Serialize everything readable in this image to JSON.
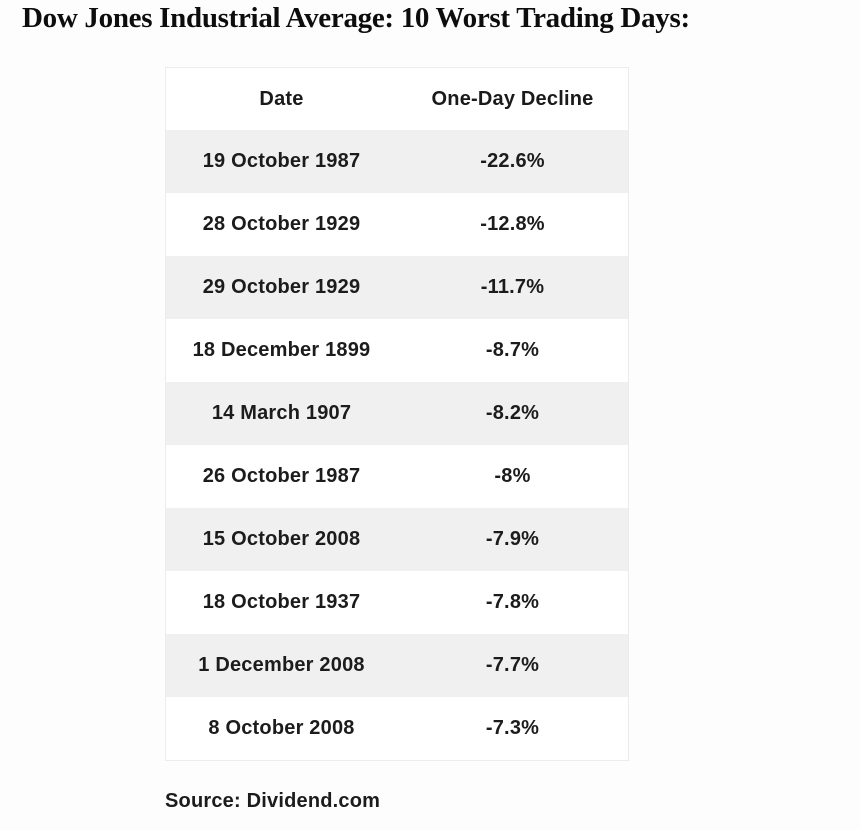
{
  "chart_data": {
    "type": "table",
    "title": "Dow Jones Industrial Average: 10 Worst Trading Days:",
    "columns": [
      "Date",
      "One-Day Decline"
    ],
    "rows": [
      [
        "19 October 1987",
        "-22.6%"
      ],
      [
        "28 October 1929",
        "-12.8%"
      ],
      [
        "29 October 1929",
        "-11.7%"
      ],
      [
        "18 December 1899",
        "-8.7%"
      ],
      [
        "14 March 1907",
        "-8.2%"
      ],
      [
        "26 October 1987",
        "-8%"
      ],
      [
        "15 October 2008",
        "-7.9%"
      ],
      [
        "18 October 1937",
        "-7.8%"
      ],
      [
        "1 December 2008",
        "-7.7%"
      ],
      [
        "8 October 2008",
        "-7.3%"
      ]
    ],
    "source": "Source: Dividend.com",
    "layout": {
      "stripe_rows": "odd rows shaded",
      "alignment": "center",
      "grid": "off"
    }
  },
  "colors": {
    "background": "#fdfdfd",
    "table_background": "#ffffff",
    "stripe": "#f0f0f0",
    "border": "#ececec",
    "text": "#1c1c1c",
    "title_text": "#0d0d0d"
  }
}
